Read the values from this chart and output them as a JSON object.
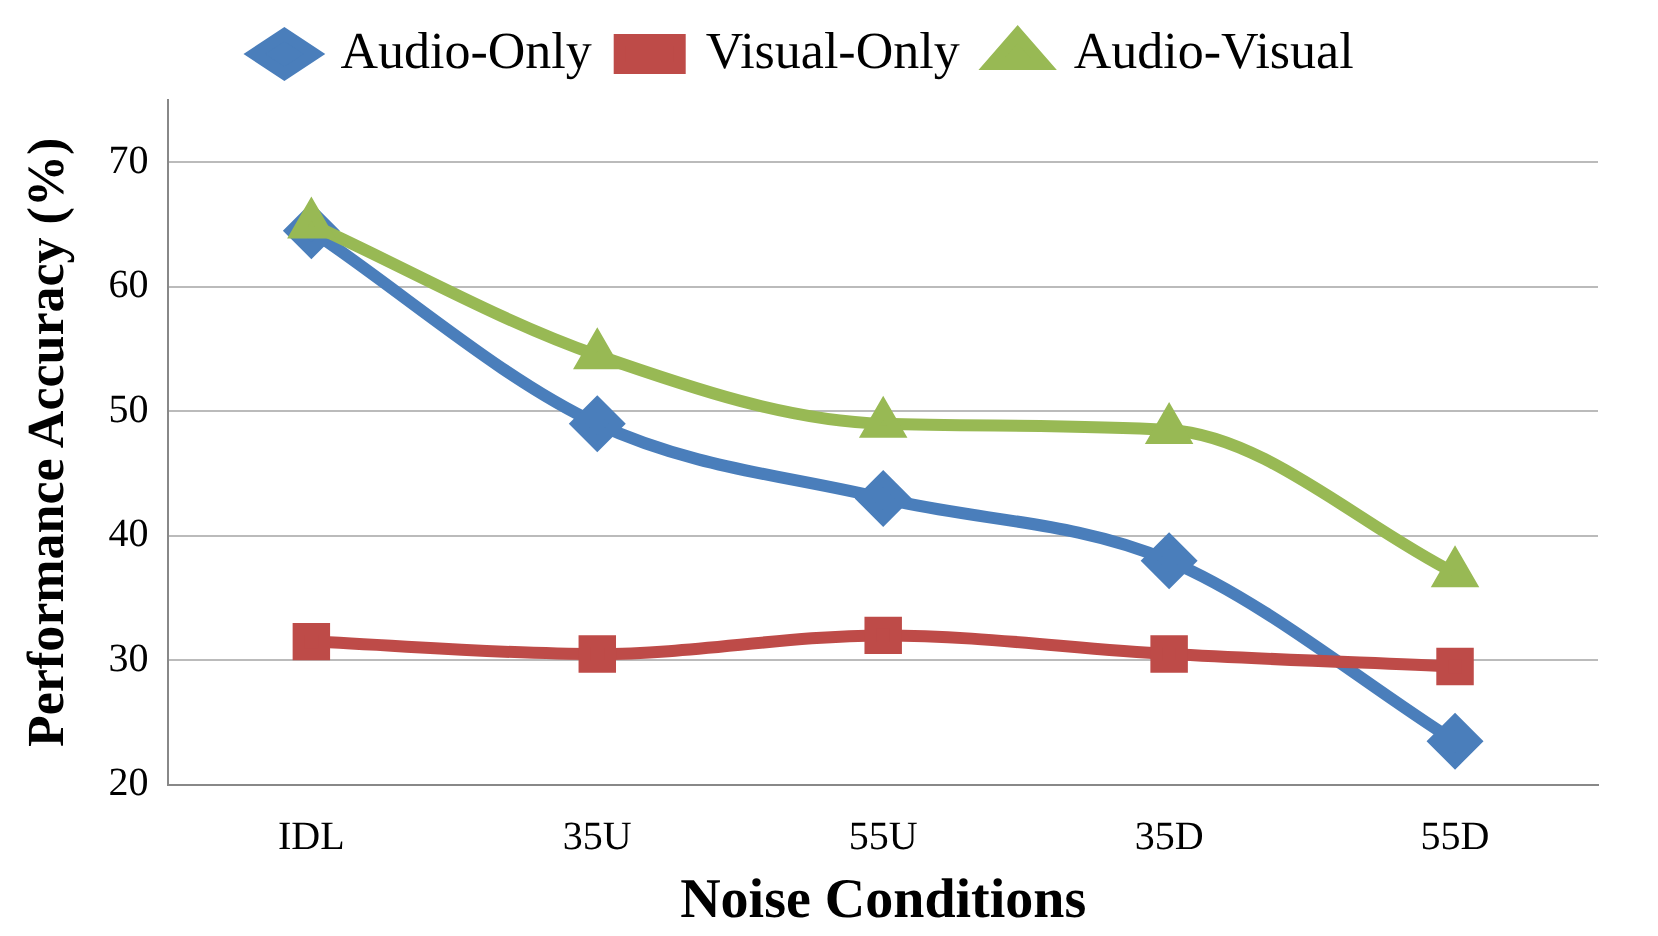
{
  "chart_data": {
    "type": "line",
    "xlabel": "Noise Conditions",
    "ylabel": "Performance Accuracy (%)",
    "categories": [
      "IDL",
      "35U",
      "55U",
      "35D",
      "55D"
    ],
    "series": [
      {
        "name": "Audio-Only",
        "color": "#4a7ebb",
        "marker": "diamond",
        "values": [
          64.5,
          49,
          43,
          38,
          23.5
        ]
      },
      {
        "name": "Visual-Only",
        "color": "#be4b48",
        "marker": "square",
        "values": [
          31.5,
          30.5,
          32,
          30.5,
          29.5
        ]
      },
      {
        "name": "Audio-Visual",
        "color": "#98b954",
        "marker": "triangle",
        "values": [
          65,
          54.5,
          49,
          48.5,
          37
        ]
      }
    ],
    "ylim": [
      20,
      75
    ],
    "yticks": [
      20,
      30,
      40,
      50,
      60,
      70
    ],
    "grid": "y",
    "legend": "top"
  }
}
